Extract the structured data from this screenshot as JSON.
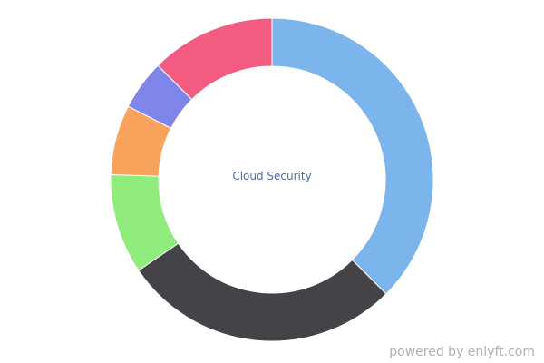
{
  "chart_data": {
    "type": "pie",
    "variant": "donut",
    "center_label": "Cloud Security",
    "series": [
      {
        "values": [
          37.5,
          28.0,
          10.0,
          7.0,
          5.0,
          12.5
        ],
        "colors": [
          "#7cb4ec",
          "#434348",
          "#90ed7d",
          "#f7a35c",
          "#8085e9",
          "#f15c80"
        ]
      }
    ],
    "legend": "none"
  },
  "footer": {
    "watermark": "powered by enlyft.com"
  }
}
